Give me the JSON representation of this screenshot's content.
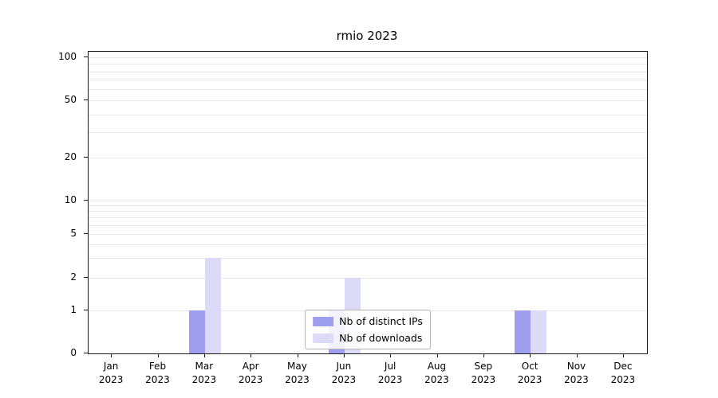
{
  "title": "rmio 2023",
  "colors": {
    "distinct_ips": "#9f9ff0",
    "downloads": "#dbdbf7",
    "grid": "#e7e7e7",
    "axis": "#1a1a1a"
  },
  "legend": {
    "items": [
      {
        "label": "Nb of distinct IPs",
        "color": "#9f9ff0"
      },
      {
        "label": "Nb of downloads",
        "color": "#dbdbf7"
      }
    ]
  },
  "chart_data": {
    "type": "bar",
    "title": "rmio 2023",
    "categories": [
      "Jan 2023",
      "Feb 2023",
      "Mar 2023",
      "Apr 2023",
      "May 2023",
      "Jun 2023",
      "Jul 2023",
      "Aug 2023",
      "Sep 2023",
      "Oct 2023",
      "Nov 2023",
      "Dec 2023"
    ],
    "series": [
      {
        "name": "Nb of distinct IPs",
        "color": "#9f9ff0",
        "values": [
          0,
          0,
          1,
          0,
          0,
          1,
          0,
          0,
          0,
          1,
          0,
          0
        ]
      },
      {
        "name": "Nb of downloads",
        "color": "#dbdbf7",
        "values": [
          0,
          0,
          3,
          0,
          0,
          2,
          0,
          0,
          0,
          1,
          0,
          0
        ]
      }
    ],
    "xlabel": "",
    "ylabel": "",
    "yscale": "symlog",
    "ylim": [
      0,
      110
    ],
    "yticks": [
      0,
      1,
      2,
      5,
      10,
      20,
      50,
      100
    ],
    "grid_values": [
      1,
      2,
      3,
      4,
      5,
      6,
      7,
      8,
      9,
      10,
      20,
      30,
      40,
      50,
      60,
      70,
      80,
      90,
      100
    ],
    "grid": "horizontal",
    "legend_position": "lower center"
  }
}
